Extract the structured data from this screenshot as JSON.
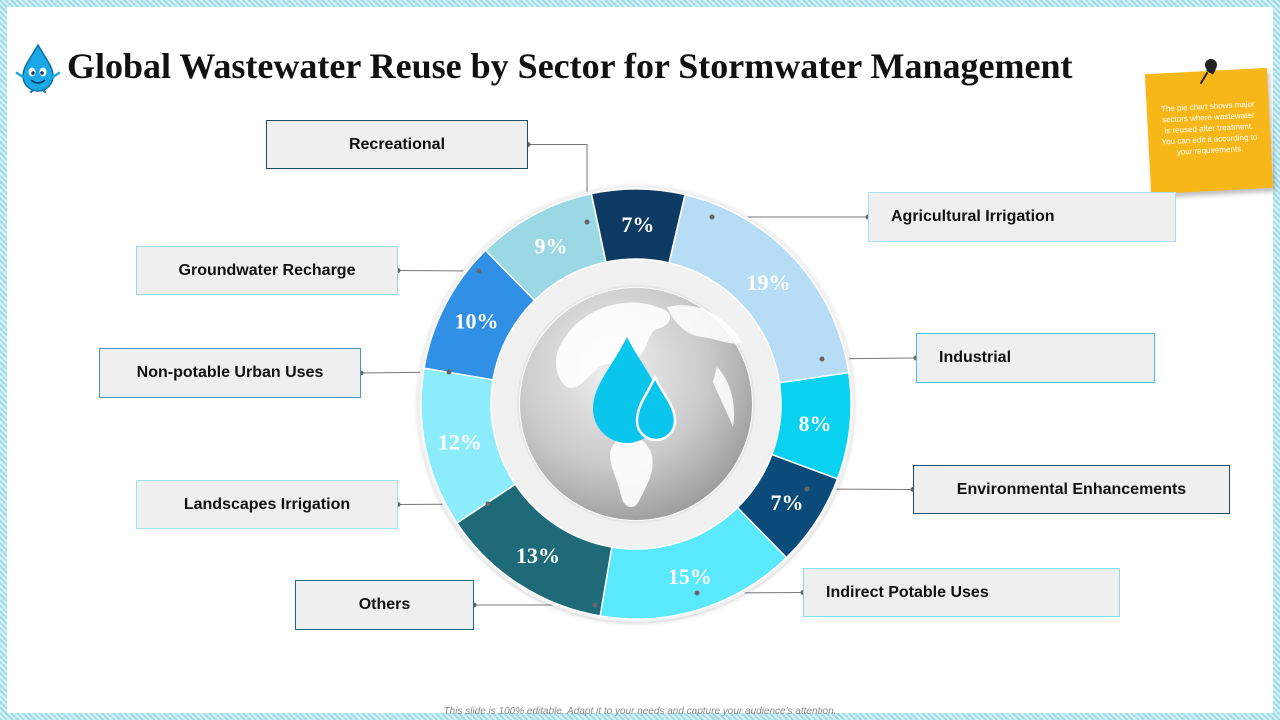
{
  "title": "Global Wastewater Reuse by Sector for Stormwater Management",
  "note_text": "The pie chart shows major sectors where wastewater is reused after treatment. You can edit it according to your requirements.",
  "footer": "This slide is 100% editable. Adapt it to your needs and capture your audience's attention.",
  "icons": {
    "mascot": "water-drop-mascot-icon",
    "pin": "push-pin-icon",
    "center": "globe-water-drop-icon"
  },
  "chart_data": {
    "type": "pie",
    "style": "donut",
    "categories": [
      "Recreational",
      "Agricultural Irrigation",
      "Industrial",
      "Environmental Enhancements",
      "Indirect Potable Uses",
      "Others",
      "Landscapes Irrigation",
      "Non-potable Urban Uses",
      "Groundwater Recharge"
    ],
    "values": [
      7,
      19,
      8,
      7,
      15,
      13,
      12,
      10,
      9
    ],
    "labels": [
      "7%",
      "19%",
      "8%",
      "7%",
      "15%",
      "13%",
      "12%",
      "10%",
      "9%"
    ],
    "colors": [
      "#0d3b63",
      "#b7dcf6",
      "#08d2ef",
      "#0b4b7a",
      "#5ae9fb",
      "#1e6a78",
      "#8cecfb",
      "#2f90e6",
      "#9ad9e4"
    ],
    "box_border_colors": [
      "#1b4d6e",
      "#a9dff0",
      "#3fc9de",
      "#1b4d6e",
      "#7fe0ee",
      "#1d6a78",
      "#9fe3ef",
      "#4a93c9",
      "#9ad9e4"
    ],
    "legend_placement": "callout boxes around chart"
  }
}
